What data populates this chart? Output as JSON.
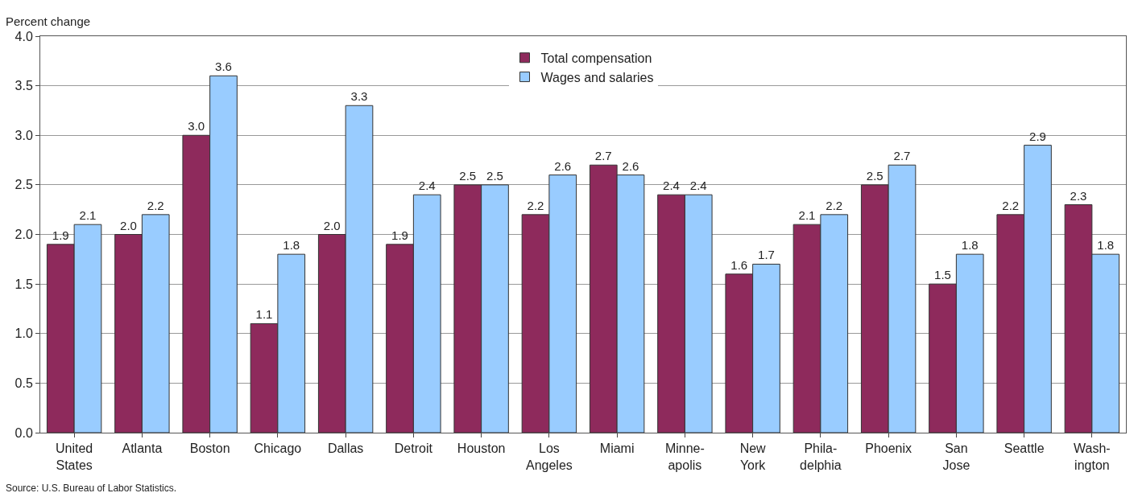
{
  "chart_data": {
    "type": "bar",
    "ylabel": "Percent change",
    "categories": [
      "United\nStates",
      "Atlanta",
      "Boston",
      "Chicago",
      "Dallas",
      "Detroit",
      "Houston",
      "Los\nAngeles",
      "Miami",
      "Minne-\napolis",
      "New\nYork",
      "Phila-\ndelphia",
      "Phoenix",
      "San\nJose",
      "Seattle",
      "Wash-\nington"
    ],
    "series": [
      {
        "name": "Total compensation",
        "color": "#8e2a5c",
        "values": [
          1.9,
          2.0,
          3.0,
          1.1,
          2.0,
          1.9,
          2.5,
          2.2,
          2.7,
          2.4,
          1.6,
          2.1,
          2.5,
          1.5,
          2.2,
          2.3
        ],
        "value_labels": [
          "1.9",
          "2.0",
          "3.0",
          "1.1",
          "2.0",
          "1.9",
          "2.5",
          "2.2",
          "2.7",
          "2.4",
          "1.6",
          "2.1",
          "2.5",
          "1.5",
          "2.2",
          "2.3"
        ]
      },
      {
        "name": "Wages and salaries",
        "color": "#99ccff",
        "values": [
          2.1,
          2.2,
          3.6,
          1.8,
          3.3,
          2.4,
          2.5,
          2.6,
          2.6,
          2.4,
          1.7,
          2.2,
          2.7,
          1.8,
          2.9,
          1.8
        ],
        "value_labels": [
          "2.1",
          "2.2",
          "3.6",
          "1.8",
          "3.3",
          "2.4",
          "2.5",
          "2.6",
          "2.6",
          "2.4",
          "1.7",
          "2.2",
          "2.7",
          "1.8",
          "2.9",
          "1.8"
        ]
      }
    ],
    "ylim": [
      0,
      4.0
    ],
    "yticks": [
      {
        "value": 0,
        "label": "0.0"
      },
      {
        "value": 0.5,
        "label": "0.5"
      },
      {
        "value": 1,
        "label": "1.0"
      },
      {
        "value": 1.5,
        "label": "1.5"
      },
      {
        "value": 2,
        "label": "2.0"
      },
      {
        "value": 2.5,
        "label": "2.5"
      },
      {
        "value": 3,
        "label": "3.0"
      },
      {
        "value": 3.5,
        "label": "3.5"
      },
      {
        "value": 4,
        "label": "4.0"
      }
    ],
    "grid": "y",
    "legend": "top",
    "annotations": [
      "Source: U.S. Bureau of Labor Statistics."
    ]
  }
}
